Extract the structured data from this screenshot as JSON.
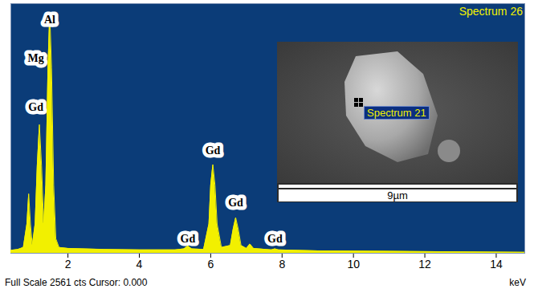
{
  "chart_data": {
    "type": "area",
    "title": "Spectrum 26",
    "x_label": "keV",
    "footer": "Full Scale 2561 cts Cursor: 0.000",
    "inset": {
      "label": "Spectrum 21",
      "scale_bar": "9µm"
    },
    "color": "#f2f000",
    "xlim": [
      0.4,
      14.8
    ],
    "xticks": [
      2,
      4,
      6,
      8,
      10,
      12,
      14
    ],
    "ylim": [
      0,
      2561
    ],
    "tick_labels": "x",
    "x": [
      0.4,
      0.6,
      0.75,
      0.85,
      0.9,
      0.95,
      1.0,
      1.08,
      1.14,
      1.2,
      1.26,
      1.32,
      1.38,
      1.44,
      1.49,
      1.54,
      1.6,
      1.66,
      1.75,
      2.0,
      3.0,
      4.0,
      5.0,
      5.25,
      5.36,
      5.47,
      5.8,
      5.95,
      6.0,
      6.06,
      6.12,
      6.18,
      6.3,
      6.55,
      6.63,
      6.7,
      6.77,
      6.85,
      7.0,
      7.1,
      7.2,
      7.7,
      7.8,
      7.9,
      9.0,
      11.0,
      14.8
    ],
    "values": [
      30,
      40,
      60,
      300,
      610,
      300,
      80,
      300,
      900,
      1320,
      900,
      300,
      700,
      1900,
      2475,
      1900,
      700,
      150,
      60,
      50,
      40,
      35,
      35,
      45,
      75,
      45,
      40,
      300,
      700,
      910,
      700,
      300,
      60,
      80,
      250,
      365,
      250,
      80,
      50,
      95,
      50,
      35,
      45,
      35,
      25,
      20,
      10
    ],
    "annotations": [
      {
        "text": "Al",
        "x": 1.49,
        "y": 2400
      },
      {
        "text": "Mg",
        "x": 1.1,
        "y": 2000
      },
      {
        "text": "Gd",
        "x": 1.1,
        "y": 1500
      },
      {
        "text": "Gd",
        "x": 5.36,
        "y": 150
      },
      {
        "text": "Gd",
        "x": 6.06,
        "y": 1050
      },
      {
        "text": "Gd",
        "x": 6.7,
        "y": 520
      },
      {
        "text": "Gd",
        "x": 7.8,
        "y": 150
      }
    ]
  }
}
